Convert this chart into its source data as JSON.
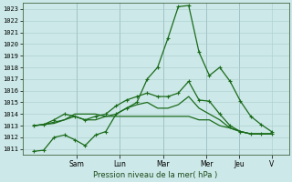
{
  "xlabel": "Pression niveau de la mer( hPa )",
  "bg_color": "#cce8e8",
  "grid_color": "#aacccc",
  "line_color": "#1a6b1a",
  "ylim": [
    1010.5,
    1023.5
  ],
  "yticks": [
    1011,
    1012,
    1013,
    1014,
    1015,
    1016,
    1017,
    1018,
    1019,
    1020,
    1021,
    1022,
    1023
  ],
  "x_day_labels": [
    "Sam",
    "Lun",
    "Mar",
    "Mer",
    "Jeu",
    "V"
  ],
  "x_day_positions": [
    3.0,
    5.0,
    7.0,
    9.0,
    10.5,
    12.0
  ],
  "xlim": [
    0.5,
    12.8
  ],
  "series": [
    {
      "y": [
        1010.8,
        1010.9,
        1012.0,
        1012.2,
        1011.8,
        1011.3,
        1012.2,
        1012.5,
        1014.0,
        1014.5,
        1015.0,
        1017.0,
        1018.0,
        1020.5,
        1023.2,
        1023.3,
        1019.3,
        1017.3,
        1018.0,
        1016.8,
        1015.1,
        1013.8,
        1013.1,
        1012.5
      ],
      "marker": true,
      "lw": 0.9
    },
    {
      "y": [
        1013.0,
        1013.1,
        1013.5,
        1014.0,
        1013.8,
        1013.5,
        1013.8,
        1014.0,
        1014.7,
        1015.2,
        1015.5,
        1015.8,
        1015.5,
        1015.5,
        1015.8,
        1016.8,
        1015.2,
        1015.1,
        1014.0,
        1013.0,
        1012.5,
        1012.3,
        1012.3,
        1012.3
      ],
      "marker": true,
      "lw": 0.9
    },
    {
      "y": [
        1013.0,
        1013.1,
        1013.3,
        1013.5,
        1013.8,
        1013.5,
        1013.5,
        1013.8,
        1014.0,
        1014.5,
        1014.8,
        1015.0,
        1014.5,
        1014.5,
        1014.8,
        1015.5,
        1014.5,
        1014.0,
        1013.5,
        1012.8,
        1012.5,
        1012.3,
        1012.3,
        1012.3
      ],
      "marker": false,
      "lw": 0.9
    },
    {
      "y": [
        1013.0,
        1013.1,
        1013.2,
        1013.5,
        1014.0,
        1014.0,
        1014.0,
        1013.8,
        1013.8,
        1013.8,
        1013.8,
        1013.8,
        1013.8,
        1013.8,
        1013.8,
        1013.8,
        1013.5,
        1013.5,
        1013.0,
        1012.8,
        1012.5,
        1012.3,
        1012.3,
        1012.3
      ],
      "marker": false,
      "lw": 0.9
    }
  ],
  "figsize": [
    3.2,
    2.0
  ],
  "dpi": 100
}
